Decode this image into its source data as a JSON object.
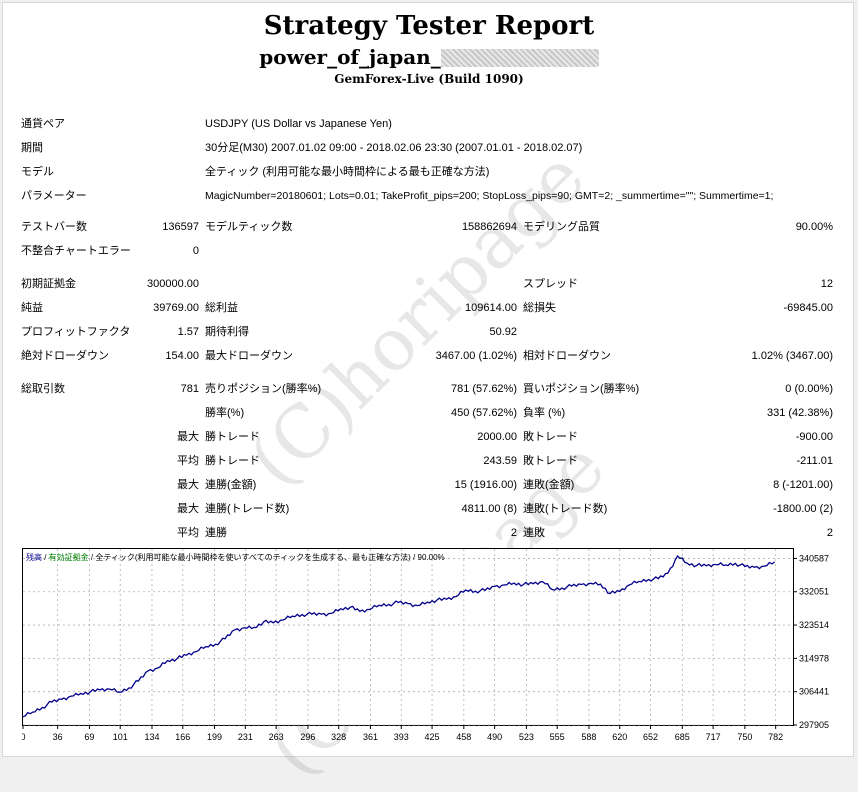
{
  "title": "Strategy Tester Report",
  "ea_name": "power_of_japan_",
  "server": "GemForex-Live (Build 1090)",
  "watermark": "(C)horipage",
  "info": {
    "pair_label": "通貨ペア",
    "pair_value": "USDJPY (US Dollar vs Japanese Yen)",
    "period_label": "期間",
    "period_value": "30分足(M30) 2007.01.02 09:00 - 2018.02.06 23:30 (2007.01.01 - 2018.02.07)",
    "model_label": "モデル",
    "model_value": "全ティック (利用可能な最小時間枠による最も正確な方法)",
    "params_label": "パラメーター",
    "params_value": "MagicNumber=20180601; Lots=0.01; TakeProfit_pips=200; StopLoss_pips=90; GMT=2; _summertime=\"\"; Summertime=1;"
  },
  "stats": {
    "bars_label": "テストバー数",
    "bars_value": "136597",
    "ticks_label": "モデルティック数",
    "ticks_value": "158862694",
    "quality_label": "モデリング品質",
    "quality_value": "90.00%",
    "mismatch_label": "不整合チャートエラー",
    "mismatch_value": "0",
    "deposit_label": "初期証拠金",
    "deposit_value": "300000.00",
    "spread_label": "スプレッド",
    "spread_value": "12",
    "net_label": "純益",
    "net_value": "39769.00",
    "gross_profit_label": "総利益",
    "gross_profit_value": "109614.00",
    "gross_loss_label": "総損失",
    "gross_loss_value": "-69845.00",
    "pf_label": "プロフィットファクタ",
    "pf_value": "1.57",
    "expected_label": "期待利得",
    "expected_value": "50.92",
    "abs_dd_label": "絶対ドローダウン",
    "abs_dd_value": "154.00",
    "max_dd_label": "最大ドローダウン",
    "max_dd_value": "3467.00 (1.02%)",
    "rel_dd_label": "相対ドローダウン",
    "rel_dd_value": "1.02% (3467.00)",
    "total_label": "総取引数",
    "total_value": "781",
    "short_label": "売りポジション(勝率%)",
    "short_value": "781 (57.62%)",
    "long_label": "買いポジション(勝率%)",
    "long_value": "0 (0.00%)",
    "win_label": "勝率(%)",
    "win_value": "450 (57.62%)",
    "loss_label": "負率 (%)",
    "loss_value": "331 (42.38%)",
    "max_prefix": "最大",
    "avg_prefix": "平均",
    "largest_win_label": "勝トレード",
    "largest_win_value": "2000.00",
    "largest_loss_label": "敗トレード",
    "largest_loss_value": "-900.00",
    "avg_win_label": "勝トレード",
    "avg_win_value": "243.59",
    "avg_loss_label": "敗トレード",
    "avg_loss_value": "-211.01",
    "cw_money_label": "連勝(金額)",
    "cw_money_value": "15 (1916.00)",
    "cl_money_label": "連敗(金額)",
    "cl_money_value": "8 (-1201.00)",
    "cw_trades_label": "連勝(トレード数)",
    "cw_trades_value": "4811.00 (8)",
    "cl_trades_label": "連敗(トレード数)",
    "cl_trades_value": "-1800.00 (2)",
    "avg_cw_label": "連勝",
    "avg_cw_value": "2",
    "avg_cl_label": "連敗",
    "avg_cl_value": "2"
  },
  "chart_legend": {
    "balance": "残高",
    "sep1": " / ",
    "equity": "有効証拠金",
    "sep2": " / ",
    "desc": "全ティック(利用可能な最小時間枠を使いすべてのティックを生成する、最も正確な方法) / 90.00%"
  },
  "chart_data": {
    "type": "line",
    "xlim": [
      0,
      800
    ],
    "ylim": [
      297905,
      343000
    ],
    "x_ticks": [
      "0",
      "36",
      "69",
      "101",
      "134",
      "166",
      "199",
      "231",
      "263",
      "296",
      "328",
      "361",
      "393",
      "425",
      "458",
      "490",
      "523",
      "555",
      "588",
      "620",
      "652",
      "685",
      "717",
      "750",
      "782"
    ],
    "y_ticks": [
      "340587",
      "332051",
      "323514",
      "314978",
      "306441",
      "297905"
    ],
    "series": [
      {
        "color": "#00008b",
        "points": [
          [
            0,
            300000
          ],
          [
            10,
            301200
          ],
          [
            20,
            302400
          ],
          [
            30,
            303800
          ],
          [
            40,
            304500
          ],
          [
            50,
            305300
          ],
          [
            60,
            306000
          ],
          [
            70,
            306400
          ],
          [
            80,
            306900
          ],
          [
            90,
            307100
          ],
          [
            100,
            306300
          ],
          [
            110,
            307400
          ],
          [
            120,
            309200
          ],
          [
            130,
            311800
          ],
          [
            140,
            312500
          ],
          [
            150,
            314400
          ],
          [
            160,
            314900
          ],
          [
            170,
            315800
          ],
          [
            180,
            316700
          ],
          [
            190,
            318000
          ],
          [
            200,
            318600
          ],
          [
            210,
            320000
          ],
          [
            220,
            322300
          ],
          [
            230,
            322800
          ],
          [
            240,
            322900
          ],
          [
            250,
            324300
          ],
          [
            260,
            324100
          ],
          [
            270,
            324800
          ],
          [
            280,
            325800
          ],
          [
            290,
            326200
          ],
          [
            300,
            326300
          ],
          [
            310,
            326300
          ],
          [
            320,
            326500
          ],
          [
            330,
            327700
          ],
          [
            340,
            328100
          ],
          [
            350,
            327000
          ],
          [
            360,
            327500
          ],
          [
            370,
            328600
          ],
          [
            380,
            328800
          ],
          [
            390,
            329300
          ],
          [
            400,
            329000
          ],
          [
            410,
            328500
          ],
          [
            420,
            329400
          ],
          [
            430,
            329900
          ],
          [
            440,
            330100
          ],
          [
            450,
            330800
          ],
          [
            460,
            332500
          ],
          [
            470,
            332200
          ],
          [
            480,
            332400
          ],
          [
            490,
            333400
          ],
          [
            500,
            333800
          ],
          [
            510,
            334300
          ],
          [
            520,
            333900
          ],
          [
            530,
            334100
          ],
          [
            540,
            334600
          ],
          [
            550,
            332600
          ],
          [
            560,
            333000
          ],
          [
            570,
            333500
          ],
          [
            580,
            333900
          ],
          [
            590,
            334200
          ],
          [
            600,
            334000
          ],
          [
            610,
            331600
          ],
          [
            620,
            332100
          ],
          [
            630,
            333800
          ],
          [
            640,
            334700
          ],
          [
            650,
            335200
          ],
          [
            660,
            335400
          ],
          [
            670,
            336800
          ],
          [
            680,
            341200
          ],
          [
            690,
            339400
          ],
          [
            700,
            338800
          ],
          [
            710,
            338700
          ],
          [
            720,
            339000
          ],
          [
            730,
            338900
          ],
          [
            740,
            339300
          ],
          [
            750,
            338500
          ],
          [
            760,
            338300
          ],
          [
            770,
            338600
          ],
          [
            781,
            339700
          ]
        ]
      }
    ]
  }
}
